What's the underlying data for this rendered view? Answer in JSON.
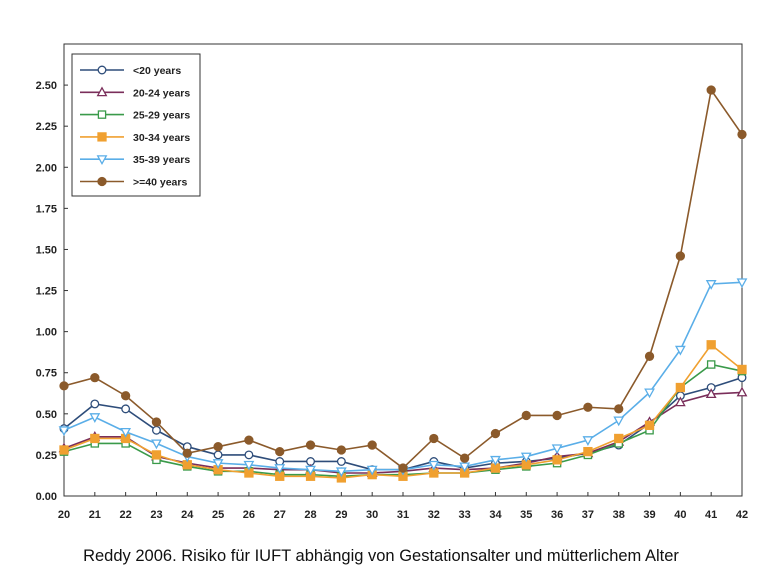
{
  "caption": "Reddy 2006. Risiko für IUFT abhängig von Gestationsalter und mütterlichem Alter",
  "chart_data": {
    "type": "line",
    "title": "",
    "xlabel": "",
    "ylabel": "",
    "x": [
      20,
      21,
      22,
      23,
      24,
      25,
      26,
      27,
      28,
      29,
      30,
      31,
      32,
      33,
      34,
      35,
      36,
      37,
      38,
      39,
      40,
      41,
      42
    ],
    "xlim": [
      20,
      42
    ],
    "ylim": [
      0,
      2.75
    ],
    "yticks": [
      "0.00",
      "0.25",
      "0.50",
      "0.75",
      "1.00",
      "1.25",
      "1.50",
      "1.75",
      "2.00",
      "2.25",
      "2.50"
    ],
    "grid": false,
    "legend_position": "top-left",
    "series": [
      {
        "name": "<20 years",
        "color": "#2e4d7a",
        "marker": "circle-open",
        "values": [
          0.41,
          0.56,
          0.53,
          0.4,
          0.3,
          0.25,
          0.25,
          0.21,
          0.21,
          0.21,
          0.16,
          0.16,
          0.21,
          0.17,
          0.2,
          0.21,
          0.23,
          0.26,
          0.31,
          0.44,
          0.61,
          0.66,
          0.72
        ]
      },
      {
        "name": "20-24 years",
        "color": "#7a2e5a",
        "marker": "triangle-up-open",
        "values": [
          0.29,
          0.36,
          0.36,
          0.24,
          0.2,
          0.17,
          0.17,
          0.16,
          0.16,
          0.14,
          0.14,
          0.15,
          0.17,
          0.16,
          0.17,
          0.2,
          0.24,
          0.26,
          0.33,
          0.45,
          0.57,
          0.62,
          0.63
        ]
      },
      {
        "name": "25-29 years",
        "color": "#3a9a4a",
        "marker": "square-open",
        "values": [
          0.27,
          0.32,
          0.32,
          0.22,
          0.18,
          0.15,
          0.15,
          0.13,
          0.13,
          0.12,
          0.13,
          0.13,
          0.14,
          0.14,
          0.16,
          0.18,
          0.2,
          0.25,
          0.32,
          0.4,
          0.66,
          0.8,
          0.76
        ]
      },
      {
        "name": "30-34 years",
        "color": "#f0a030",
        "marker": "square-filled",
        "values": [
          0.28,
          0.35,
          0.35,
          0.25,
          0.19,
          0.16,
          0.14,
          0.12,
          0.12,
          0.11,
          0.13,
          0.12,
          0.14,
          0.14,
          0.17,
          0.19,
          0.22,
          0.27,
          0.35,
          0.43,
          0.66,
          0.92,
          0.77
        ]
      },
      {
        "name": "35-39 years",
        "color": "#5aaee8",
        "marker": "triangle-down-open",
        "values": [
          0.4,
          0.48,
          0.39,
          0.32,
          0.24,
          0.2,
          0.19,
          0.17,
          0.16,
          0.15,
          0.16,
          0.16,
          0.19,
          0.18,
          0.22,
          0.24,
          0.29,
          0.34,
          0.46,
          0.63,
          0.89,
          1.29,
          1.3
        ]
      },
      {
        "name": ">=40 years",
        "color": "#8b5a2b",
        "marker": "circle-filled",
        "values": [
          0.67,
          0.72,
          0.61,
          0.45,
          0.26,
          0.3,
          0.34,
          0.27,
          0.31,
          0.28,
          0.31,
          0.17,
          0.35,
          0.23,
          0.38,
          0.49,
          0.49,
          0.54,
          0.53,
          0.85,
          1.46,
          2.47,
          2.2
        ]
      }
    ]
  }
}
